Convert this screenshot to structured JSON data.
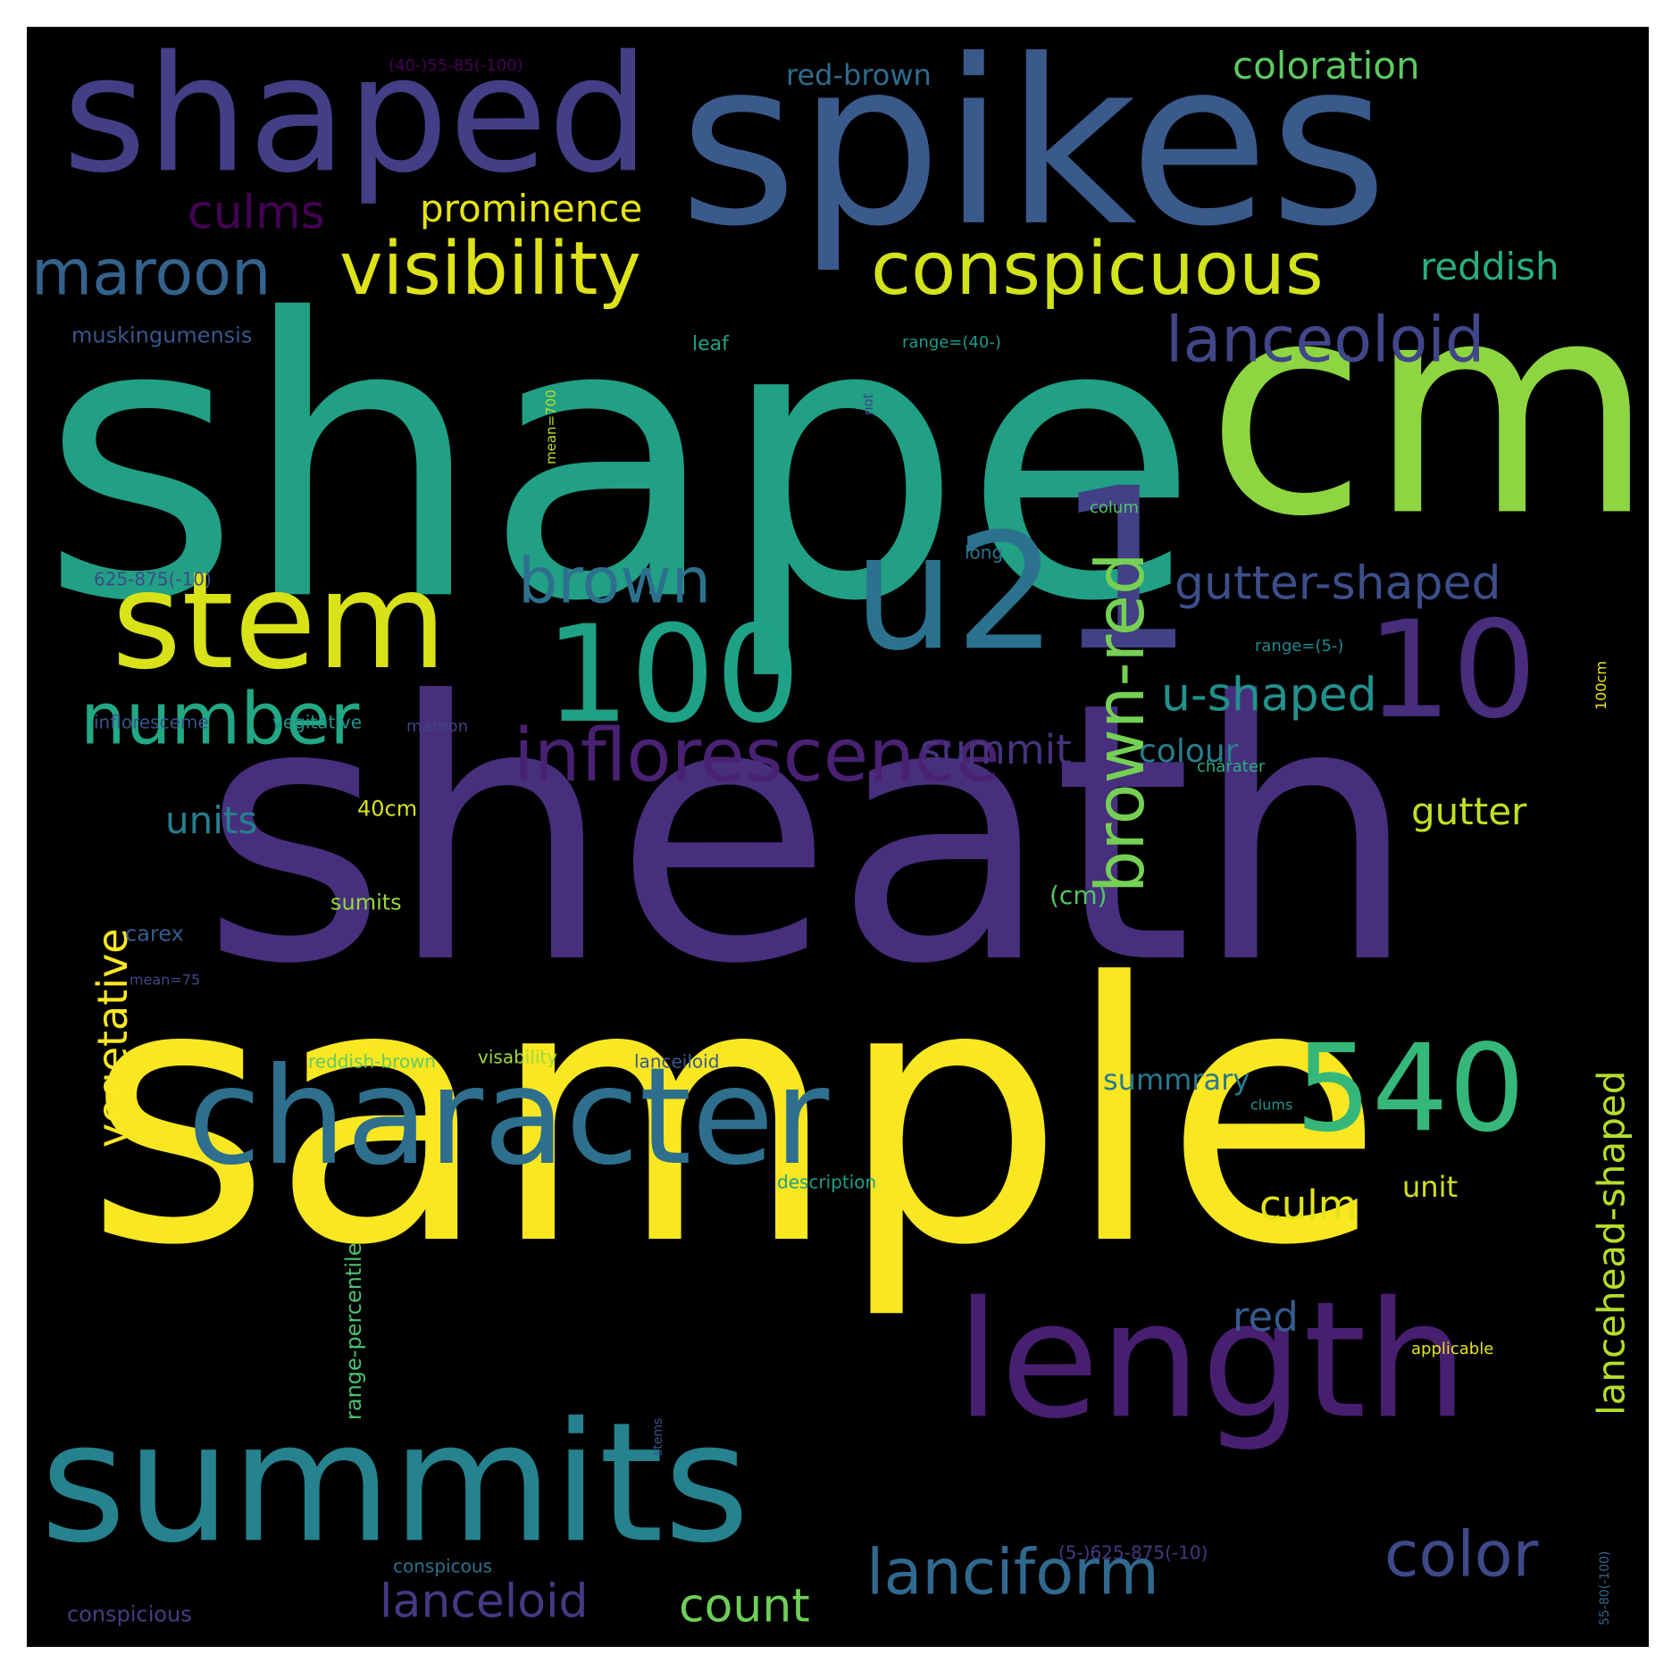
{
  "wordcloud": {
    "background": "#000000",
    "frame": "#ffffff",
    "words": [
      {
        "text": "shape",
        "color": "#21a085"
      },
      {
        "text": "sheath",
        "color": "#472f7d"
      },
      {
        "text": "sample",
        "color": "#f9e721"
      },
      {
        "text": "spikes",
        "color": "#3b5a8c"
      },
      {
        "text": "cm",
        "color": "#8ed641"
      },
      {
        "text": "shaped",
        "color": "#433e85"
      },
      {
        "text": "1",
        "color": "#424086"
      },
      {
        "text": "u2",
        "color": "#2c728e"
      },
      {
        "text": "10",
        "color": "#472d7b"
      },
      {
        "text": "summits",
        "color": "#26828e"
      },
      {
        "text": "length",
        "color": "#481f70"
      },
      {
        "text": "character",
        "color": "#2e6f8e"
      },
      {
        "text": "stem",
        "color": "#d8e219"
      },
      {
        "text": "100",
        "color": "#1fa187"
      },
      {
        "text": "540",
        "color": "#35b779"
      },
      {
        "text": "inflorescence",
        "color": "#482173"
      },
      {
        "text": "visibility",
        "color": "#dde318"
      },
      {
        "text": "conspicuous",
        "color": "#d2e21b"
      },
      {
        "text": "brown-red",
        "color": "#75d054"
      },
      {
        "text": "number",
        "color": "#22a884"
      },
      {
        "text": "lanceoloid",
        "color": "#404688"
      },
      {
        "text": "brown",
        "color": "#2d708e"
      },
      {
        "text": "maroon",
        "color": "#33638d"
      },
      {
        "text": "lanciform",
        "color": "#31688e"
      },
      {
        "text": "color",
        "color": "#3e4989"
      },
      {
        "text": "gutter-shaped",
        "color": "#3d4e8a"
      },
      {
        "text": "u-shaped",
        "color": "#21918c"
      },
      {
        "text": "lanceloid",
        "color": "#443983"
      },
      {
        "text": "count",
        "color": "#6ece58"
      },
      {
        "text": "culms",
        "color": "#440154"
      },
      {
        "text": "prominence",
        "color": "#e5e419"
      },
      {
        "text": "coloration",
        "color": "#5ec962"
      },
      {
        "text": "reddish",
        "color": "#29af7f"
      },
      {
        "text": "vegetative",
        "color": "#fde725"
      },
      {
        "text": "lancehead-shaped",
        "color": "#b5de2b"
      },
      {
        "text": "summit",
        "color": "#46337e"
      },
      {
        "text": "gutter",
        "color": "#c2df23"
      },
      {
        "text": "culm",
        "color": "#e2e418"
      },
      {
        "text": "units",
        "color": "#277f8e"
      },
      {
        "text": "colour",
        "color": "#287d8e"
      },
      {
        "text": "red",
        "color": "#375a8c"
      },
      {
        "text": "summrary",
        "color": "#297a8e"
      },
      {
        "text": "unit",
        "color": "#d0e11c"
      },
      {
        "text": "red-brown",
        "color": "#2f6b8e"
      },
      {
        "text": "40cm",
        "color": "#d5e21a"
      },
      {
        "text": "(cm)",
        "color": "#54c568"
      },
      {
        "text": "carex",
        "color": "#365c8d"
      },
      {
        "text": "sumits",
        "color": "#95d840"
      },
      {
        "text": "range-percentile",
        "color": "#4ac16d"
      },
      {
        "text": "muskingumensis",
        "color": "#39568c"
      },
      {
        "text": "leaf",
        "color": "#20a486"
      },
      {
        "text": "range=(40-)",
        "color": "#1f9a8a"
      },
      {
        "text": "(40-)55-85(-100)",
        "color": "#440154"
      },
      {
        "text": "mean=700",
        "color": "#bade28"
      },
      {
        "text": "not",
        "color": "#414487"
      },
      {
        "text": "colum",
        "color": "#52c569"
      },
      {
        "text": "long",
        "color": "#2a768e"
      },
      {
        "text": "625-875(-10)",
        "color": "#3e4a89"
      },
      {
        "text": "range=(5-)",
        "color": "#23898e"
      },
      {
        "text": "100cm",
        "color": "#e7e419"
      },
      {
        "text": "infloresceme",
        "color": "#3b528b"
      },
      {
        "text": "vegitative",
        "color": "#1f968b"
      },
      {
        "text": "maroon",
        "color": "#424186"
      },
      {
        "text": "charater",
        "color": "#2ab07f"
      },
      {
        "text": "mean=75",
        "color": "#3f4788"
      },
      {
        "text": "reddish-brown",
        "color": "#63cb5f"
      },
      {
        "text": "visability",
        "color": "#9fda3a"
      },
      {
        "text": "lanceiloid",
        "color": "#38588c"
      },
      {
        "text": "description",
        "color": "#1f9e89"
      },
      {
        "text": "clums",
        "color": "#1f958b"
      },
      {
        "text": "applicable",
        "color": "#e4e51a"
      },
      {
        "text": "stems",
        "color": "#3b528b"
      },
      {
        "text": "conspicous",
        "color": "#2c718e"
      },
      {
        "text": "(5-)625-875(-10)",
        "color": "#453781"
      },
      {
        "text": "55-80(-100)",
        "color": "#31678e"
      },
      {
        "text": "conspicious",
        "color": "#433e85"
      }
    ]
  }
}
